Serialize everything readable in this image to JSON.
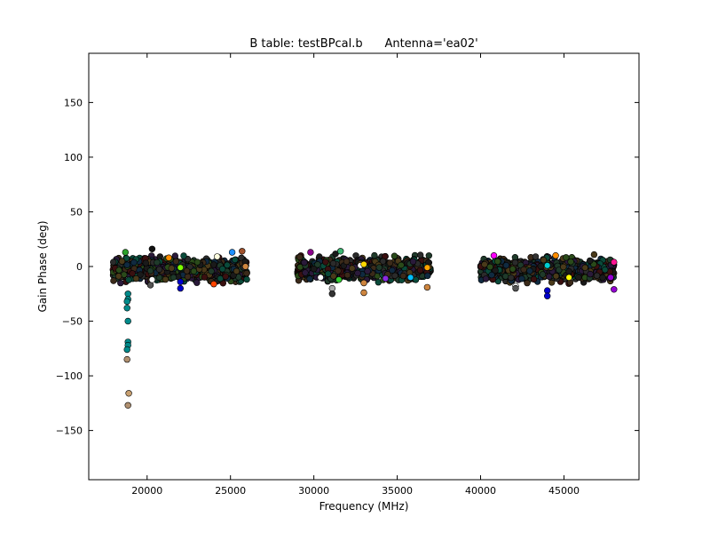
{
  "chart_data": {
    "type": "scatter",
    "title": "B table: testBPcal.b      Antenna='ea02'",
    "xlabel": "Frequency (MHz)",
    "ylabel": "Gain Phase (deg)",
    "xlim": [
      16500,
      49500
    ],
    "ylim": [
      -195,
      195
    ],
    "xticks": [
      20000,
      25000,
      30000,
      35000,
      40000,
      45000
    ],
    "yticks": [
      -150,
      -100,
      -50,
      0,
      50,
      100,
      150
    ],
    "ytick_labels": [
      "−150",
      "−100",
      "−50",
      "0",
      "50",
      "100",
      "150"
    ],
    "grid": false,
    "legend": "none",
    "marker": "circle",
    "edge_color": "#000000",
    "point_colors": [
      "#2b2b2b",
      "#1f3a2a",
      "#3b2a1a",
      "#102a40",
      "#2a1a3a",
      "#4a3a1a",
      "#0a4a3a",
      "#3a1010",
      "#1a1a1a",
      "#2a4a1a"
    ],
    "bands": [
      {
        "x_start": 17950,
        "x_end": 26000,
        "y_center": -3,
        "spread": 7
      },
      {
        "x_start": 29000,
        "x_end": 37000,
        "y_center": -2,
        "spread": 7
      },
      {
        "x_start": 40000,
        "x_end": 48000,
        "y_center": -3,
        "spread": 7
      }
    ],
    "highlight_points": [
      {
        "x": 18700,
        "y": 13,
        "color": "#2ca02c"
      },
      {
        "x": 18850,
        "y": -25,
        "color": "#008b8b"
      },
      {
        "x": 18850,
        "y": -30,
        "color": "#008b8b"
      },
      {
        "x": 18800,
        "y": -32,
        "color": "#008b8b"
      },
      {
        "x": 18800,
        "y": -38,
        "color": "#008b8b"
      },
      {
        "x": 18850,
        "y": -50,
        "color": "#008b8b"
      },
      {
        "x": 18850,
        "y": -69,
        "color": "#008b8b"
      },
      {
        "x": 18850,
        "y": -72,
        "color": "#008b8b"
      },
      {
        "x": 18800,
        "y": -76,
        "color": "#008b8b"
      },
      {
        "x": 18800,
        "y": -85,
        "color": "#b09070"
      },
      {
        "x": 18900,
        "y": -116,
        "color": "#c8a070"
      },
      {
        "x": 18850,
        "y": -127,
        "color": "#b09070"
      },
      {
        "x": 20200,
        "y": -17,
        "color": "#555555"
      },
      {
        "x": 20300,
        "y": 16,
        "color": "#111111"
      },
      {
        "x": 20300,
        "y": -12,
        "color": "#ffffff"
      },
      {
        "x": 21300,
        "y": 8,
        "color": "#ff8c00"
      },
      {
        "x": 22000,
        "y": -1,
        "color": "#7cfc00"
      },
      {
        "x": 22000,
        "y": -14,
        "color": "#0000cd"
      },
      {
        "x": 22000,
        "y": -20,
        "color": "#0000cd"
      },
      {
        "x": 24000,
        "y": -16,
        "color": "#ff4500"
      },
      {
        "x": 24200,
        "y": 9,
        "color": "#ffffe0"
      },
      {
        "x": 25100,
        "y": 13,
        "color": "#1e90ff"
      },
      {
        "x": 25700,
        "y": 14,
        "color": "#a0522d"
      },
      {
        "x": 25900,
        "y": 0,
        "color": "#cd853f"
      },
      {
        "x": 29800,
        "y": 13,
        "color": "#8b008b"
      },
      {
        "x": 30400,
        "y": -10,
        "color": "#ffffff"
      },
      {
        "x": 31100,
        "y": -20,
        "color": "#aaaaaa"
      },
      {
        "x": 31100,
        "y": -25,
        "color": "#333333"
      },
      {
        "x": 31500,
        "y": -12,
        "color": "#32cd32"
      },
      {
        "x": 31600,
        "y": 14,
        "color": "#3cb371"
      },
      {
        "x": 32800,
        "y": 1,
        "color": "#ffffff"
      },
      {
        "x": 33000,
        "y": 2,
        "color": "#ffd700"
      },
      {
        "x": 33000,
        "y": -15,
        "color": "#cd853f"
      },
      {
        "x": 33000,
        "y": -24,
        "color": "#cd853f"
      },
      {
        "x": 34300,
        "y": -11,
        "color": "#8a2be2"
      },
      {
        "x": 35800,
        "y": -10,
        "color": "#00bfff"
      },
      {
        "x": 36800,
        "y": -1,
        "color": "#ffa500"
      },
      {
        "x": 36800,
        "y": -19,
        "color": "#cd853f"
      },
      {
        "x": 40800,
        "y": 10,
        "color": "#ff00ff"
      },
      {
        "x": 42100,
        "y": -18,
        "color": "#ffffff"
      },
      {
        "x": 42100,
        "y": -20,
        "color": "#555555"
      },
      {
        "x": 43300,
        "y": 9,
        "color": "#333333"
      },
      {
        "x": 44000,
        "y": 1,
        "color": "#00ced1"
      },
      {
        "x": 44000,
        "y": -22,
        "color": "#0000cd"
      },
      {
        "x": 44000,
        "y": -27,
        "color": "#0000cd"
      },
      {
        "x": 44500,
        "y": 10,
        "color": "#ff8c00"
      },
      {
        "x": 45300,
        "y": -10,
        "color": "#ffff00"
      },
      {
        "x": 47800,
        "y": -10,
        "color": "#9400d3"
      },
      {
        "x": 48000,
        "y": 4,
        "color": "#ff1493"
      },
      {
        "x": 48000,
        "y": -21,
        "color": "#9400d3"
      }
    ]
  }
}
